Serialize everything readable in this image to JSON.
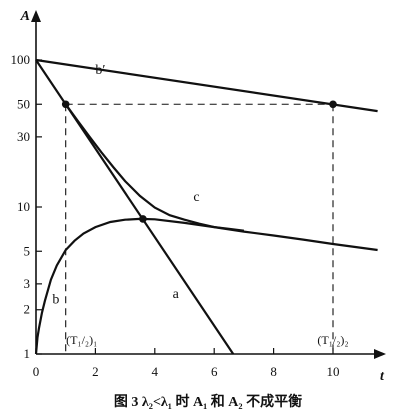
{
  "chart_data": {
    "type": "line",
    "title": "",
    "caption": "图 3  λ₂<λ₁ 时 A₁ 和 A₂ 不成平衡",
    "xlabel": "t",
    "ylabel": "A",
    "x_scale": "linear",
    "y_scale": "log",
    "xlim": [
      0,
      11
    ],
    "ylim": [
      1,
      100
    ],
    "grid": false,
    "x_ticks": [
      0,
      2,
      4,
      6,
      8,
      10
    ],
    "y_ticks": [
      1,
      2,
      3,
      5,
      10,
      30,
      50,
      100
    ],
    "x_tick_labels": [
      "0",
      "2",
      "4",
      "6",
      "8",
      "10"
    ],
    "y_tick_labels": [
      "1",
      "2",
      "3",
      "5",
      "10",
      "30",
      "50",
      "100"
    ],
    "series": [
      {
        "name": "b′",
        "x": [
          0,
          11.5
        ],
        "y": [
          100,
          44.9
        ]
      },
      {
        "name": "a",
        "x": [
          0,
          6.64
        ],
        "y": [
          100,
          1
        ]
      },
      {
        "name": "b",
        "x": [
          0.05,
          0.1,
          0.2,
          0.3,
          0.5,
          0.7,
          1.0,
          1.3,
          1.6,
          2.0,
          2.5,
          3.0,
          3.5,
          4.0,
          5.0,
          6.0,
          7.0,
          8.0,
          9.0,
          10.0,
          11.5
        ],
        "y": [
          1.3,
          1.5,
          1.9,
          2.3,
          3.2,
          4.0,
          5.1,
          5.9,
          6.6,
          7.3,
          7.9,
          8.2,
          8.3,
          8.25,
          7.8,
          7.3,
          6.8,
          6.4,
          6.0,
          5.6,
          5.1
        ]
      },
      {
        "name": "c",
        "x": [
          1.0,
          1.4,
          1.8,
          2.2,
          2.6,
          3.0,
          3.5,
          4.0,
          4.5,
          5.0,
          5.5,
          6.0,
          6.5,
          7.0
        ],
        "y": [
          50,
          38.7,
          30.1,
          23.6,
          18.7,
          15.0,
          11.9,
          9.9,
          8.8,
          8.2,
          7.7,
          7.3,
          7.1,
          6.9
        ]
      }
    ],
    "points": [
      {
        "x": 1.0,
        "y": 50
      },
      {
        "x": 10.0,
        "y": 50
      },
      {
        "x": 3.6,
        "y": 8.3
      }
    ],
    "guides": [
      {
        "from": [
          1.0,
          50
        ],
        "to": [
          10.0,
          50
        ]
      },
      {
        "from": [
          1.0,
          50
        ],
        "to": [
          1.0,
          1
        ]
      },
      {
        "from": [
          10.0,
          50
        ],
        "to": [
          10.0,
          1
        ]
      }
    ],
    "annotations": [
      {
        "text": "(T₁/₂)₁",
        "x": 1.0
      },
      {
        "text": "(T₁/₂)₂",
        "x": 10.0
      }
    ]
  }
}
